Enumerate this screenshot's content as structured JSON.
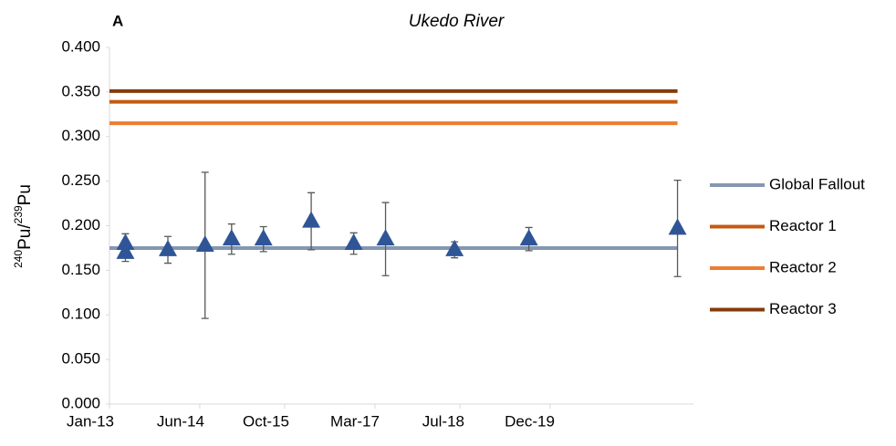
{
  "chart_data": {
    "type": "scatter",
    "panel_label": "A",
    "title": "Ukedo River",
    "ylabel": [
      {
        "text": "240",
        "sup": true
      },
      {
        "text": "Pu/",
        "sup": false
      },
      {
        "text": "239",
        "sup": true
      },
      {
        "text": "Pu",
        "sup": false
      }
    ],
    "xlim": [
      "2013-01",
      "2022-03"
    ],
    "xticks": [
      {
        "value": "2013-01",
        "label": "Jan-13"
      },
      {
        "value": "2014-06",
        "label": "Jun-14"
      },
      {
        "value": "2015-10",
        "label": "Oct-15"
      },
      {
        "value": "2017-03",
        "label": "Mar-17"
      },
      {
        "value": "2018-07",
        "label": "Jul-18"
      },
      {
        "value": "2019-12",
        "label": "Dec-19"
      }
    ],
    "ylim": [
      0,
      0.4
    ],
    "yticks": [
      {
        "value": 0,
        "label": "0.000"
      },
      {
        "value": 0.05,
        "label": "0.050"
      },
      {
        "value": 0.1,
        "label": "0.100"
      },
      {
        "value": 0.15,
        "label": "0.150"
      },
      {
        "value": 0.2,
        "label": "0.200"
      },
      {
        "value": 0.25,
        "label": "0.250"
      },
      {
        "value": 0.3,
        "label": "0.300"
      },
      {
        "value": 0.35,
        "label": "0.350"
      },
      {
        "value": 0.4,
        "label": "0.400"
      }
    ],
    "legend": "right",
    "series": [
      {
        "name": "Global Fallout",
        "color": "#8497b0",
        "x": [
          "2013-01",
          "2021-12"
        ],
        "values": [
          0.175,
          0.175
        ]
      },
      {
        "name": "Reactor 1",
        "color": "#c55a11",
        "x": [
          "2013-01",
          "2021-12"
        ],
        "values": [
          0.339,
          0.339
        ]
      },
      {
        "name": "Reactor 2",
        "color": "#ed7d31",
        "x": [
          "2013-01",
          "2021-12"
        ],
        "values": [
          0.315,
          0.315
        ]
      },
      {
        "name": "Reactor 3",
        "color": "#843c0c",
        "x": [
          "2013-01",
          "2021-12"
        ],
        "values": [
          0.351,
          0.351
        ]
      }
    ],
    "points": {
      "color": "#2f5597",
      "x": [
        "2013-04",
        "2013-04",
        "2013-12",
        "2014-07",
        "2014-12",
        "2015-06",
        "2016-03",
        "2016-11",
        "2017-05",
        "2018-06",
        "2019-08",
        "2021-12"
      ],
      "values": [
        0.18,
        0.17,
        0.173,
        0.178,
        0.185,
        0.185,
        0.205,
        0.18,
        0.185,
        0.173,
        0.185,
        0.197
      ],
      "errors": [
        0.011,
        0.01,
        0.015,
        0.082,
        0.017,
        0.014,
        0.032,
        0.012,
        0.041,
        0.009,
        0.013,
        0.054
      ]
    }
  }
}
